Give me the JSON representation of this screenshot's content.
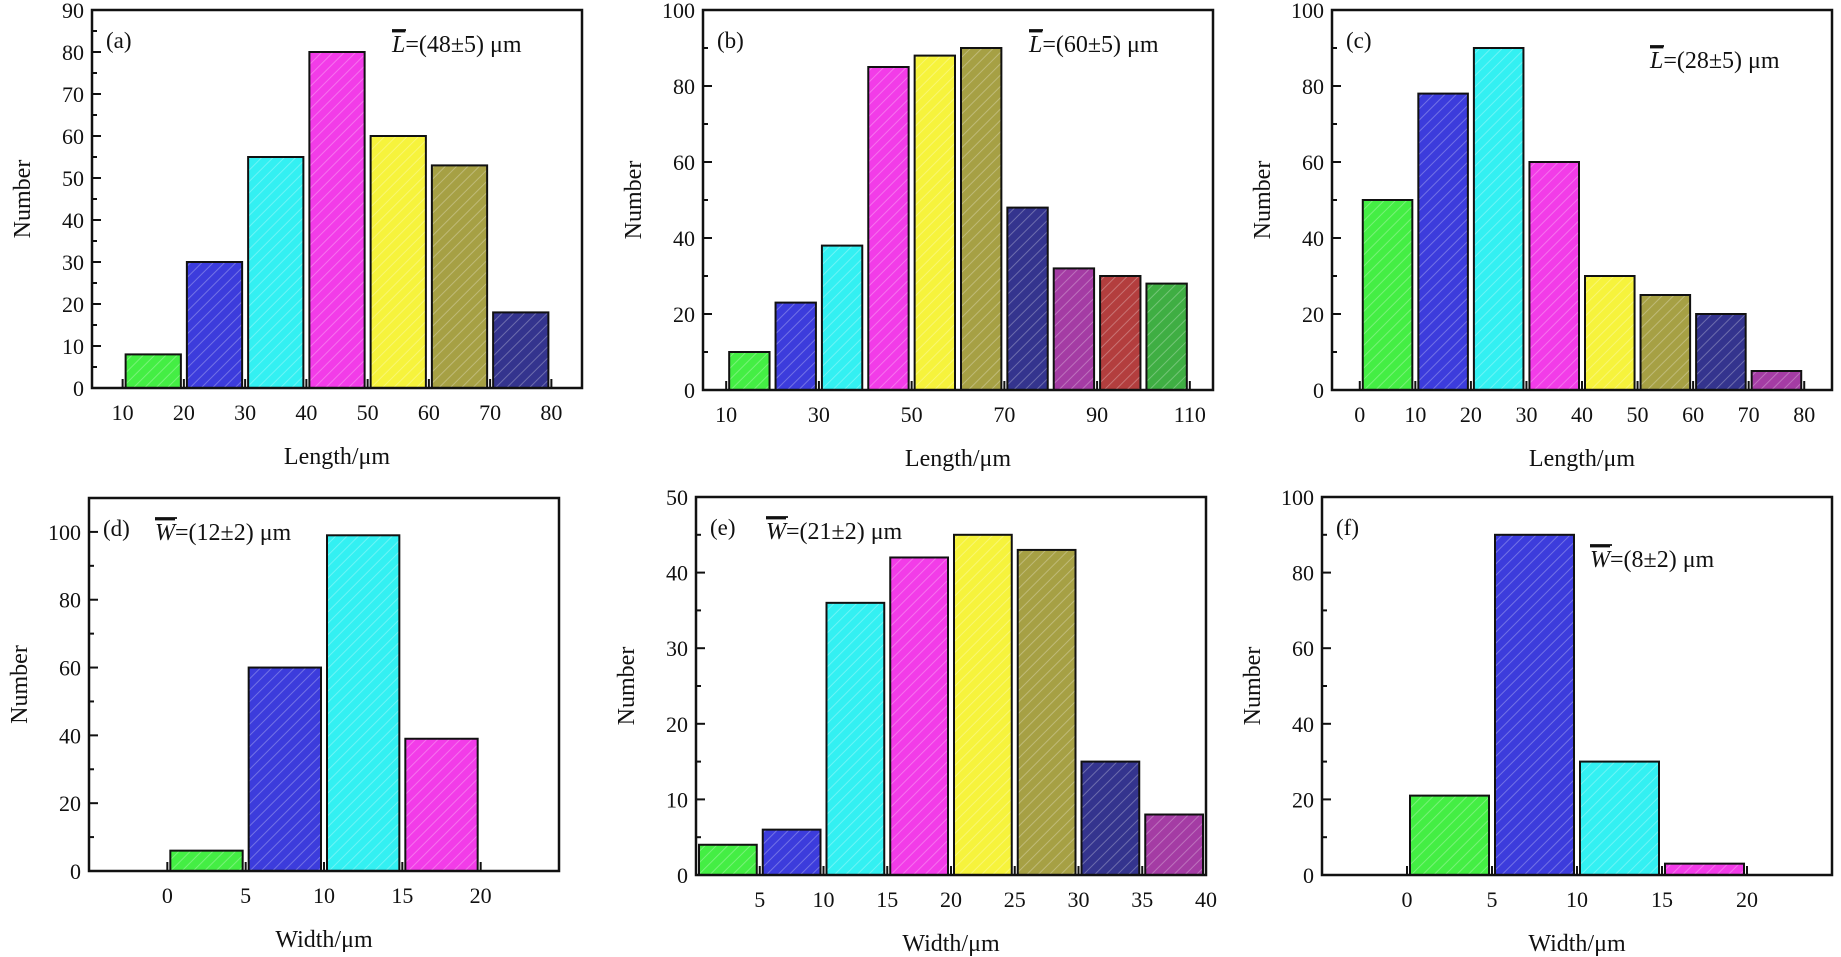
{
  "figure": {
    "bar_colors": [
      "#44ee44",
      "#3c3cdc",
      "#33f0f2",
      "#f23ce8",
      "#f6f33c",
      "#a6a044",
      "#34348e",
      "#a43ca4",
      "#b33e3e",
      "#3fae43"
    ]
  },
  "chart_data": [
    {
      "id": "a",
      "type": "bar",
      "panel_label": "(a)",
      "annotation_symbol": "L",
      "annotation_text": "=(48±5) μm",
      "xlabel": "Length/μm",
      "ylabel": "Number",
      "xlim": [
        5,
        85
      ],
      "ylim": [
        0,
        90
      ],
      "xticks": [
        "10",
        "20",
        "30",
        "40",
        "50",
        "60",
        "70",
        "80"
      ],
      "yticks": [
        "0",
        "10",
        "20",
        "30",
        "40",
        "50",
        "60",
        "70",
        "80",
        "90"
      ],
      "bins": [
        [
          10,
          20
        ],
        [
          20,
          30
        ],
        [
          30,
          40
        ],
        [
          40,
          50
        ],
        [
          50,
          60
        ],
        [
          60,
          70
        ],
        [
          70,
          80
        ]
      ],
      "values": [
        8,
        30,
        55,
        80,
        60,
        53,
        18
      ],
      "colors": [
        0,
        1,
        2,
        3,
        4,
        5,
        6
      ]
    },
    {
      "id": "b",
      "type": "bar",
      "panel_label": "(b)",
      "annotation_symbol": "L",
      "annotation_text": "=(60±5) μm",
      "xlabel": "Length/μm",
      "ylabel": "Number",
      "xlim": [
        5,
        115
      ],
      "ylim": [
        0,
        100
      ],
      "xticks": [
        "10",
        "30",
        "50",
        "70",
        "90",
        "110"
      ],
      "yticks": [
        "0",
        "20",
        "40",
        "60",
        "80",
        "100"
      ],
      "bins": [
        [
          10,
          20
        ],
        [
          20,
          30
        ],
        [
          30,
          40
        ],
        [
          40,
          50
        ],
        [
          50,
          60
        ],
        [
          60,
          70
        ],
        [
          70,
          80
        ],
        [
          80,
          90
        ],
        [
          90,
          100
        ],
        [
          100,
          110
        ]
      ],
      "values": [
        10,
        23,
        38,
        85,
        88,
        90,
        48,
        32,
        30,
        28
      ],
      "colors": [
        0,
        1,
        2,
        3,
        4,
        5,
        6,
        7,
        8,
        9
      ]
    },
    {
      "id": "c",
      "type": "bar",
      "panel_label": "(c)",
      "annotation_symbol": "L",
      "annotation_text": "=(28±5) μm",
      "xlabel": "Length/μm",
      "ylabel": "Number",
      "xlim": [
        -5,
        85
      ],
      "ylim": [
        0,
        100
      ],
      "xticks": [
        "0",
        "10",
        "20",
        "30",
        "40",
        "50",
        "60",
        "70",
        "80"
      ],
      "yticks": [
        "0",
        "20",
        "40",
        "60",
        "80",
        "100"
      ],
      "bins": [
        [
          0,
          10
        ],
        [
          10,
          20
        ],
        [
          20,
          30
        ],
        [
          30,
          40
        ],
        [
          40,
          50
        ],
        [
          50,
          60
        ],
        [
          60,
          70
        ],
        [
          70,
          80
        ]
      ],
      "values": [
        50,
        78,
        90,
        60,
        30,
        25,
        20,
        5
      ],
      "colors": [
        0,
        1,
        2,
        3,
        4,
        5,
        6,
        7
      ]
    },
    {
      "id": "d",
      "type": "bar",
      "panel_label": "(d)",
      "annotation_symbol": "W",
      "annotation_text": "=(12±2) μm",
      "xlabel": "Width/μm",
      "ylabel": "Number",
      "xlim": [
        -5,
        25
      ],
      "ylim": [
        0,
        110
      ],
      "xticks": [
        "0",
        "5",
        "10",
        "15",
        "20"
      ],
      "yticks": [
        "0",
        "20",
        "40",
        "60",
        "80",
        "100"
      ],
      "bins": [
        [
          0,
          5
        ],
        [
          5,
          10
        ],
        [
          10,
          15
        ],
        [
          15,
          20
        ]
      ],
      "values": [
        6,
        60,
        99,
        39
      ],
      "colors": [
        0,
        1,
        2,
        3
      ]
    },
    {
      "id": "e",
      "type": "bar",
      "panel_label": "(e)",
      "annotation_symbol": "W",
      "annotation_text": "=(21±2) μm",
      "xlabel": "Width/μm",
      "ylabel": "Number",
      "xlim": [
        0,
        40
      ],
      "ylim": [
        0,
        50
      ],
      "xticks": [
        "5",
        "10",
        "15",
        "20",
        "25",
        "30",
        "35",
        "40"
      ],
      "yticks": [
        "0",
        "10",
        "20",
        "30",
        "40",
        "50"
      ],
      "bins": [
        [
          0,
          5
        ],
        [
          5,
          10
        ],
        [
          10,
          15
        ],
        [
          15,
          20
        ],
        [
          20,
          25
        ],
        [
          25,
          30
        ],
        [
          30,
          35
        ],
        [
          35,
          40
        ]
      ],
      "values": [
        4,
        6,
        36,
        42,
        45,
        43,
        15,
        8
      ],
      "colors": [
        0,
        1,
        2,
        3,
        4,
        5,
        6,
        7
      ]
    },
    {
      "id": "f",
      "type": "bar",
      "panel_label": "(f)",
      "annotation_symbol": "W",
      "annotation_text": "=(8±2) μm",
      "xlabel": "Width/μm",
      "ylabel": "Number",
      "xlim": [
        -5,
        25
      ],
      "ylim": [
        0,
        100
      ],
      "xticks": [
        "0",
        "5",
        "10",
        "15",
        "20"
      ],
      "yticks": [
        "0",
        "20",
        "40",
        "60",
        "80",
        "100"
      ],
      "bins": [
        [
          0,
          5
        ],
        [
          5,
          10
        ],
        [
          10,
          15
        ],
        [
          15,
          20
        ]
      ],
      "values": [
        21,
        90,
        30,
        3
      ],
      "colors": [
        0,
        1,
        2,
        3
      ]
    }
  ]
}
